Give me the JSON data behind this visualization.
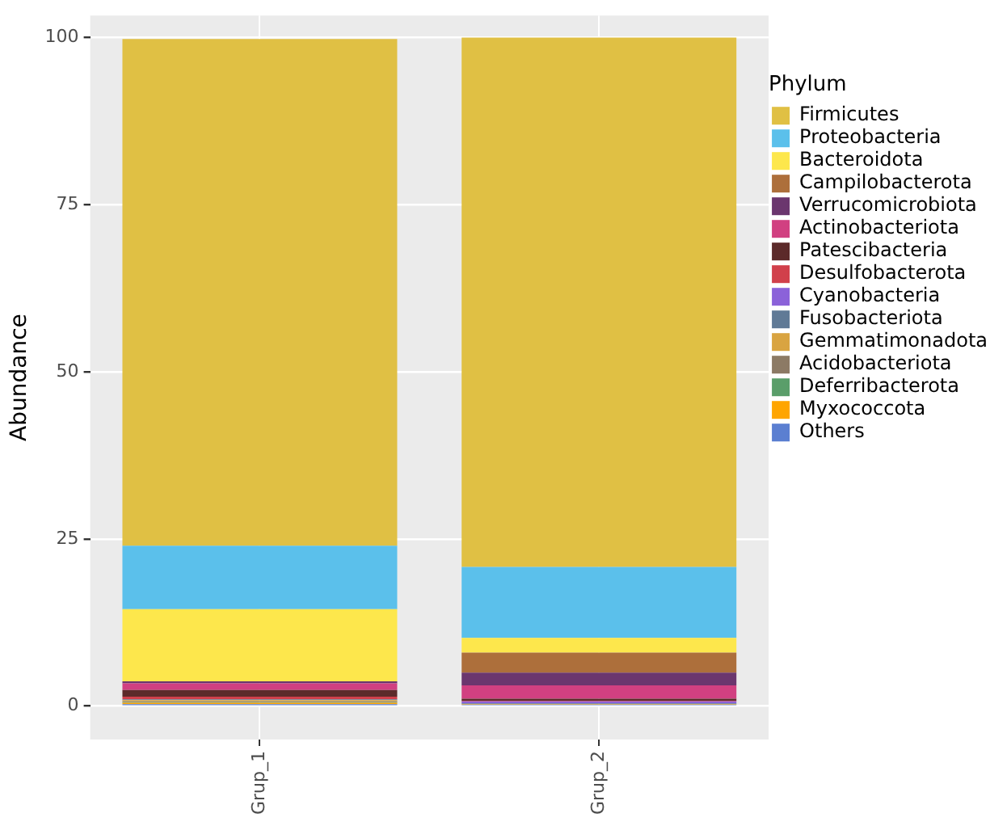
{
  "chart_data": {
    "type": "bar",
    "stacked": true,
    "ylabel": "Abundance",
    "legend_title": "Phylum",
    "legend": "right",
    "categories": [
      "Grup_1",
      "Grup_2"
    ],
    "ylim": [
      -5,
      103.3
    ],
    "yticks": [
      0,
      25,
      50,
      75,
      100
    ],
    "grid": true,
    "series": [
      {
        "name": "Others",
        "color": "#5b7fd1",
        "values": [
          0.3,
          0.2
        ]
      },
      {
        "name": "Myxococcota",
        "color": "#ffa500",
        "values": [
          0.2,
          0
        ]
      },
      {
        "name": "Deferribacterota",
        "color": "#5a9e6a",
        "values": [
          0.1,
          0
        ]
      },
      {
        "name": "Acidobacteriota",
        "color": "#8c7a65",
        "values": [
          0.1,
          0
        ]
      },
      {
        "name": "Gemmatimonadota",
        "color": "#d9a441",
        "values": [
          0.2,
          0.1
        ]
      },
      {
        "name": "Fusobacteriota",
        "color": "#607a96",
        "values": [
          0.1,
          0.1
        ]
      },
      {
        "name": "Cyanobacteria",
        "color": "#8b62d9",
        "values": [
          null,
          0.3
        ]
      },
      {
        "name": "Desulfobacterota",
        "color": "#d1404b",
        "values": [
          0.4,
          0.1
        ]
      },
      {
        "name": "Patescibacteria",
        "color": "#5c2a2a",
        "values": [
          1.0,
          0.3
        ]
      },
      {
        "name": "Actinobacteriota",
        "color": "#d14081",
        "values": [
          1.0,
          2.0
        ]
      },
      {
        "name": "Verrucomicrobiota",
        "color": "#6b366e",
        "values": [
          0.3,
          1.9
        ]
      },
      {
        "name": "Campilobacterota",
        "color": "#ad6f3b",
        "values": [
          null,
          3.0
        ]
      },
      {
        "name": "Bacteroidota",
        "color": "#fde74c",
        "values": [
          10.8,
          2.2
        ]
      },
      {
        "name": "Proteobacteria",
        "color": "#5bc0eb",
        "values": [
          9.5,
          10.6
        ]
      },
      {
        "name": "Firmicutes",
        "color": "#e0c044",
        "values": [
          75.8,
          79.2
        ]
      }
    ]
  }
}
